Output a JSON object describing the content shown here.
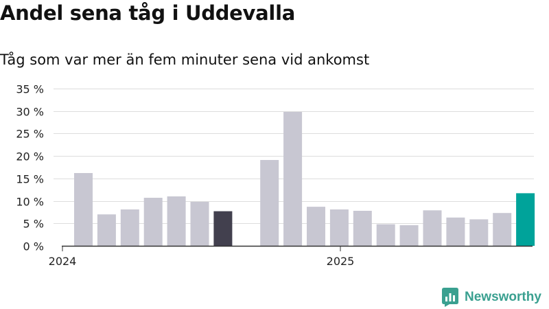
{
  "title": "Andel sena tåg i Uddevalla",
  "subtitle": "Tåg som var mer än fem minuter sena vid ankomst",
  "brand": "Newsworthy",
  "colors": {
    "bar_default": "#c8c7d2",
    "bar_highlight_dark": "#42404e",
    "bar_highlight_latest": "#00a39a",
    "grid": "#dddddd",
    "axis": "#333333",
    "brand": "#3aa090"
  },
  "chart_data": {
    "type": "bar",
    "x_tick_labels": [
      "2024",
      "2025"
    ],
    "y_tick_labels": [
      "0 %",
      "5 %",
      "10 %",
      "15 %",
      "20 %",
      "25 %",
      "30 %",
      "35 %"
    ],
    "ylim": [
      0,
      35
    ],
    "yticks": [
      0,
      5,
      10,
      15,
      20,
      25,
      30,
      35
    ],
    "grid": true,
    "xlabel": "",
    "ylabel": "",
    "bars": [
      {
        "period": "2024-01",
        "value": 16.2
      },
      {
        "period": "2024-02",
        "value": 7.0
      },
      {
        "period": "2024-03",
        "value": 8.1
      },
      {
        "period": "2024-04",
        "value": 10.7
      },
      {
        "period": "2024-05",
        "value": 11.0
      },
      {
        "period": "2024-06",
        "value": 9.8
      },
      {
        "period": "2024-07",
        "value": 7.7,
        "highlight": "dark"
      },
      {
        "period": "2024-09",
        "value": 19.1
      },
      {
        "period": "2024-10",
        "value": 29.8
      },
      {
        "period": "2024-11",
        "value": 8.7
      },
      {
        "period": "2024-12",
        "value": 8.1
      },
      {
        "period": "2025-01",
        "value": 7.8
      },
      {
        "period": "2025-02",
        "value": 4.8
      },
      {
        "period": "2025-03",
        "value": 4.6
      },
      {
        "period": "2025-04",
        "value": 7.9
      },
      {
        "period": "2025-05",
        "value": 6.3
      },
      {
        "period": "2025-06",
        "value": 5.9
      },
      {
        "period": "2025-07",
        "value": 7.3
      },
      {
        "period": "2025-08",
        "value": 11.7,
        "highlight": "latest"
      }
    ]
  }
}
